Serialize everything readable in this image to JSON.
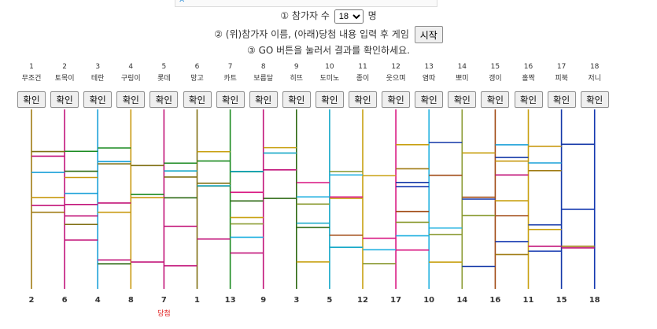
{
  "instructions": {
    "line1_prefix": "① 참가자 수",
    "line1_suffix": "명",
    "selected_count": "18",
    "line2_text": "② (위)참가자 이름, (아래)당첨 내용 입력 후 게임",
    "start_label": "시작",
    "line3_text": "③ GO 버튼을 눌러서 결과를 확인하세요."
  },
  "confirm_label": "확인",
  "participants": [
    {
      "num": "1",
      "name": "무조건"
    },
    {
      "num": "2",
      "name": "토목이"
    },
    {
      "num": "3",
      "name": "테란"
    },
    {
      "num": "4",
      "name": "구링이"
    },
    {
      "num": "5",
      "name": "롯데"
    },
    {
      "num": "6",
      "name": "망고"
    },
    {
      "num": "7",
      "name": "카트"
    },
    {
      "num": "8",
      "name": "보름달"
    },
    {
      "num": "9",
      "name": "히뜨"
    },
    {
      "num": "10",
      "name": "도미노"
    },
    {
      "num": "11",
      "name": "종이"
    },
    {
      "num": "12",
      "name": "웃으며"
    },
    {
      "num": "13",
      "name": "염따"
    },
    {
      "num": "14",
      "name": "뽀미"
    },
    {
      "num": "15",
      "name": "갱이"
    },
    {
      "num": "16",
      "name": "홀짝"
    },
    {
      "num": "17",
      "name": "피북"
    },
    {
      "num": "18",
      "name": "저니"
    }
  ],
  "results": [
    "2",
    "6",
    "4",
    "8",
    "7",
    "1",
    "13",
    "9",
    "3",
    "5",
    "12",
    "17",
    "10",
    "14",
    "16",
    "11",
    "15",
    "18"
  ],
  "winner_label": "당첨",
  "line_colors": [
    "#a07c14",
    "#c2147a",
    "#1aa0d8",
    "#c89a10",
    "#c21478",
    "#807014",
    "#1a8a20",
    "#c2147a",
    "#2e6a14",
    "#16a8c8",
    "#c8a010",
    "#d81480",
    "#20b0e0",
    "#8a9a30",
    "#a04a14",
    "#c8a010",
    "#1438a8",
    "#1438b0"
  ]
}
